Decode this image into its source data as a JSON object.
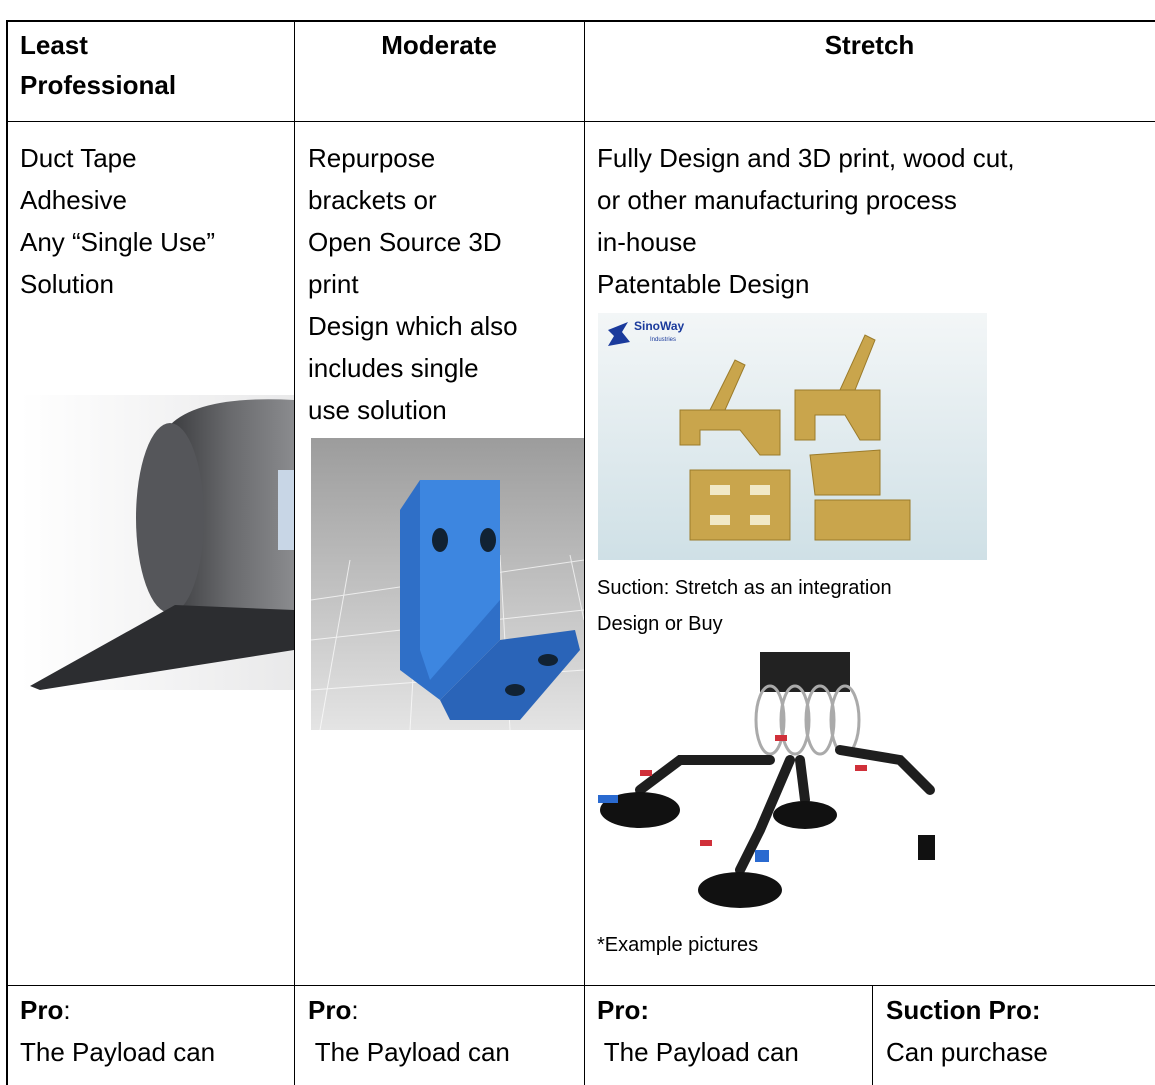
{
  "table": {
    "header": [
      [
        "Least",
        "Professional"
      ],
      [
        "Moderate"
      ],
      [
        "Stretch"
      ]
    ],
    "body": {
      "least": [
        "Duct Tape",
        "Adhesive",
        "Any “Single Use”",
        "Solution"
      ],
      "moderate": [
        "Repurpose",
        "brackets or",
        "Open Source 3D",
        "print",
        "Design which also",
        "includes single",
        "use solution"
      ],
      "stretch": {
        "lines": [
          "Fully Design and 3D print, wood cut,",
          "or other manufacturing process",
          "in-house",
          "Patentable Design"
        ],
        "logo": "SinoWay",
        "logo_sub": "Industries",
        "caption": [
          "Suction: Stretch as an integration",
          "Design or Buy"
        ],
        "note": "*Example pictures"
      }
    },
    "footer": [
      {
        "label": "Pro",
        "colon": ":",
        "text": "The Payload can"
      },
      {
        "label": "Pro",
        "colon": ":",
        "text": " The Payload can"
      },
      {
        "label": "Pro:",
        "text": " The Payload can"
      },
      {
        "label": "Suction Pro:",
        "text": "Can purchase"
      }
    ]
  }
}
